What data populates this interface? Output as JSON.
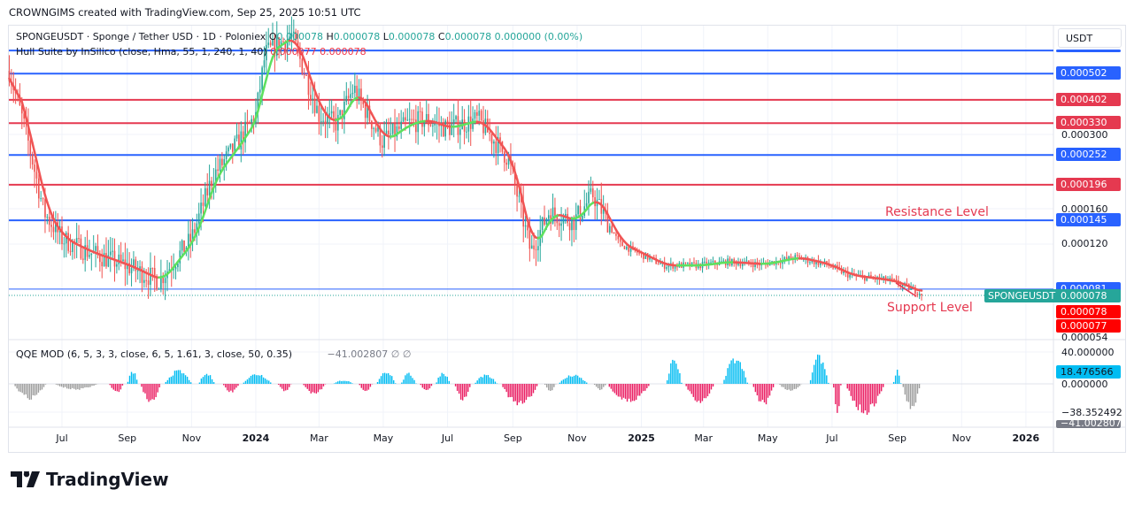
{
  "header": {
    "credit": "CROWNGIMS created with TradingView.com, Sep 25, 2025 10:51 UTC"
  },
  "legend": {
    "symbol": "SPONGEUSDT · Sponge / Tether USD · 1D · Poloniex",
    "o_label": "O",
    "o": "0.000078",
    "h_label": "H",
    "h": "0.000078",
    "l_label": "L",
    "l": "0.000078",
    "c_label": "C",
    "c": "0.000078",
    "change": "0.000000 (0.00%)",
    "hull": "Hull Suite by InSilico (close, Hma, 55, 1, 240, 1, 40)",
    "hull_v1": "0.000077",
    "hull_v2": "0.000078",
    "qqe": "QQE MOD (6, 5, 3, 3, close, 6, 5, 1.61, 3, close, 50, 0.35)",
    "qqe_v": "−41.002807",
    "qqe_na1": "∅",
    "qqe_na2": "∅"
  },
  "price_axis": {
    "currency": "USDT",
    "ticks": [
      "0.000300",
      "0.000160",
      "0.000120",
      "0.000054"
    ]
  },
  "levels": [
    {
      "price": 0.00061,
      "color": "#2962ff",
      "label": ""
    },
    {
      "price": 0.000502,
      "color": "#2962ff",
      "label": "0.000502"
    },
    {
      "price": 0.000402,
      "color": "#e53950",
      "label": "0.000402"
    },
    {
      "price": 0.00033,
      "color": "#e53950",
      "label": "0.000330"
    },
    {
      "price": 0.000252,
      "color": "#2962ff",
      "label": "0.000252"
    },
    {
      "price": 0.000196,
      "color": "#e53950",
      "label": "0.000196"
    },
    {
      "price": 0.000145,
      "color": "#2962ff",
      "label": "0.000145"
    },
    {
      "price": 8.1e-05,
      "color": "#2962ff",
      "label": "0.000081"
    }
  ],
  "last_price": {
    "symbol": "SPONGEUSDT",
    "value": "0.000078",
    "color": "#26a69a"
  },
  "hull_labels": [
    "0.000078",
    "0.000077"
  ],
  "annotations": {
    "resistance": "Resistance Level",
    "support": "Support Level"
  },
  "qqe_axis": {
    "ticks": [
      "40.000000",
      "0.000000",
      "−38.352492"
    ],
    "current": "18.476566",
    "current2": "−41.002807"
  },
  "time_axis": [
    {
      "label": "Jul",
      "date": "2023-07-01"
    },
    {
      "label": "Sep",
      "date": "2023-09-01"
    },
    {
      "label": "Nov",
      "date": "2023-11-01"
    },
    {
      "label": "2024",
      "date": "2024-01-01",
      "bold": true
    },
    {
      "label": "Mar",
      "date": "2024-03-01"
    },
    {
      "label": "May",
      "date": "2024-05-01"
    },
    {
      "label": "Jul",
      "date": "2024-07-01"
    },
    {
      "label": "Sep",
      "date": "2024-09-01"
    },
    {
      "label": "Nov",
      "date": "2024-11-01"
    },
    {
      "label": "2025",
      "date": "2025-01-01",
      "bold": true
    },
    {
      "label": "Mar",
      "date": "2025-03-01"
    },
    {
      "label": "May",
      "date": "2025-05-01"
    },
    {
      "label": "Jul",
      "date": "2025-07-01"
    },
    {
      "label": "Sep",
      "date": "2025-09-01"
    },
    {
      "label": "Nov",
      "date": "2025-11-01"
    },
    {
      "label": "2026",
      "date": "2026-01-01",
      "bold": true
    }
  ],
  "chart_data": {
    "type": "candlestick",
    "symbol": "SPONGEUSDT",
    "interval": "1D",
    "scale": "log",
    "close_path": [
      [
        "2023-05-12",
        0.000514
      ],
      [
        "2023-05-28",
        0.000304
      ],
      [
        "2023-06-14",
        0.000155
      ],
      [
        "2023-07-01",
        0.000124
      ],
      [
        "2023-07-26",
        0.000111
      ],
      [
        "2023-08-31",
        9.9e-05
      ],
      [
        "2023-10-01",
        8.7e-05
      ],
      [
        "2023-11-01",
        0.000124
      ],
      [
        "2023-11-21",
        0.00021
      ],
      [
        "2023-12-16",
        0.000283
      ],
      [
        "2024-01-01",
        0.000354
      ],
      [
        "2024-01-10",
        0.000595
      ],
      [
        "2024-02-04",
        0.000694
      ],
      [
        "2024-03-01",
        0.000354
      ],
      [
        "2024-03-18",
        0.000328
      ],
      [
        "2024-04-03",
        0.000444
      ],
      [
        "2024-04-30",
        0.000283
      ],
      [
        "2024-05-24",
        0.000328
      ],
      [
        "2024-06-10",
        0.00034
      ],
      [
        "2024-06-30",
        0.000316
      ],
      [
        "2024-07-30",
        0.00034
      ],
      [
        "2024-08-28",
        0.000243
      ],
      [
        "2024-09-18",
        0.000111
      ],
      [
        "2024-10-05",
        0.000155
      ],
      [
        "2024-10-29",
        0.000144
      ],
      [
        "2024-11-16",
        0.00018
      ],
      [
        "2024-12-11",
        0.000119
      ],
      [
        "2024-12-27",
        0.000111
      ],
      [
        "2025-01-22",
        9.9e-05
      ],
      [
        "2025-02-24",
        9.9e-05
      ],
      [
        "2025-03-22",
        0.000102
      ],
      [
        "2025-04-26",
        0.0001
      ],
      [
        "2025-05-28",
        0.000106
      ],
      [
        "2025-06-25",
        0.0001
      ],
      [
        "2025-07-18",
        9.1e-05
      ],
      [
        "2025-08-26",
        8.7e-05
      ],
      [
        "2025-09-25",
        7.8e-05
      ]
    ],
    "qqe_segments": [
      [
        "2023-05-17",
        "2023-06-20",
        -20,
        "#9e9e9e"
      ],
      [
        "2023-06-25",
        "2023-08-10",
        -8,
        "#9e9e9e"
      ],
      [
        "2023-08-15",
        "2023-08-30",
        -12,
        "#ea1e63"
      ],
      [
        "2023-09-01",
        "2023-09-12",
        18,
        "#00bcf2"
      ],
      [
        "2023-09-14",
        "2023-10-05",
        -25,
        "#ea1e63"
      ],
      [
        "2023-10-07",
        "2023-11-05",
        18,
        "#00bcf2"
      ],
      [
        "2023-11-08",
        "2023-11-25",
        14,
        "#00bcf2"
      ],
      [
        "2023-12-01",
        "2023-12-18",
        -12,
        "#ea1e63"
      ],
      [
        "2023-12-20",
        "2024-01-20",
        14,
        "#00bcf2"
      ],
      [
        "2024-01-22",
        "2024-02-05",
        -10,
        "#ea1e63"
      ],
      [
        "2024-02-15",
        "2024-03-10",
        -14,
        "#ea1e63"
      ],
      [
        "2024-03-15",
        "2024-04-05",
        5,
        "#00bcf2"
      ],
      [
        "2024-04-08",
        "2024-04-22",
        -10,
        "#ea1e63"
      ],
      [
        "2024-04-25",
        "2024-05-15",
        18,
        "#00bcf2"
      ],
      [
        "2024-05-18",
        "2024-06-03",
        14,
        "#00bcf2"
      ],
      [
        "2024-06-05",
        "2024-06-18",
        -10,
        "#ea1e63"
      ],
      [
        "2024-06-20",
        "2024-07-05",
        16,
        "#00bcf2"
      ],
      [
        "2024-07-08",
        "2024-07-25",
        -22,
        "#ea1e63"
      ],
      [
        "2024-07-27",
        "2024-08-20",
        12,
        "#00bcf2"
      ],
      [
        "2024-08-22",
        "2024-09-30",
        -30,
        "#ea1e63"
      ],
      [
        "2024-10-01",
        "2024-10-13",
        -10,
        "#9e9e9e"
      ],
      [
        "2024-10-15",
        "2024-11-15",
        12,
        "#00bcf2"
      ],
      [
        "2024-11-17",
        "2024-11-30",
        -8,
        "#9e9e9e"
      ],
      [
        "2024-12-01",
        "2025-01-15",
        -25,
        "#ea1e63"
      ],
      [
        "2025-01-25",
        "2025-02-10",
        35,
        "#00bcf2"
      ],
      [
        "2025-02-12",
        "2025-03-15",
        -25,
        "#ea1e63"
      ],
      [
        "2025-03-20",
        "2025-04-15",
        35,
        "#00bcf2"
      ],
      [
        "2025-04-17",
        "2025-05-10",
        -28,
        "#ea1e63"
      ],
      [
        "2025-05-12",
        "2025-06-05",
        -10,
        "#9e9e9e"
      ],
      [
        "2025-06-10",
        "2025-06-30",
        38,
        "#00bcf2"
      ],
      [
        "2025-07-02",
        "2025-07-10",
        -40,
        "#ea1e63"
      ],
      [
        "2025-07-15",
        "2025-08-25",
        -40,
        "#ea1e63"
      ],
      [
        "2025-08-28",
        "2025-09-05",
        18,
        "#00bcf2"
      ],
      [
        "2025-09-06",
        "2025-09-25",
        -35,
        "#9e9e9e"
      ]
    ]
  },
  "brand": {
    "name": "TradingView"
  }
}
